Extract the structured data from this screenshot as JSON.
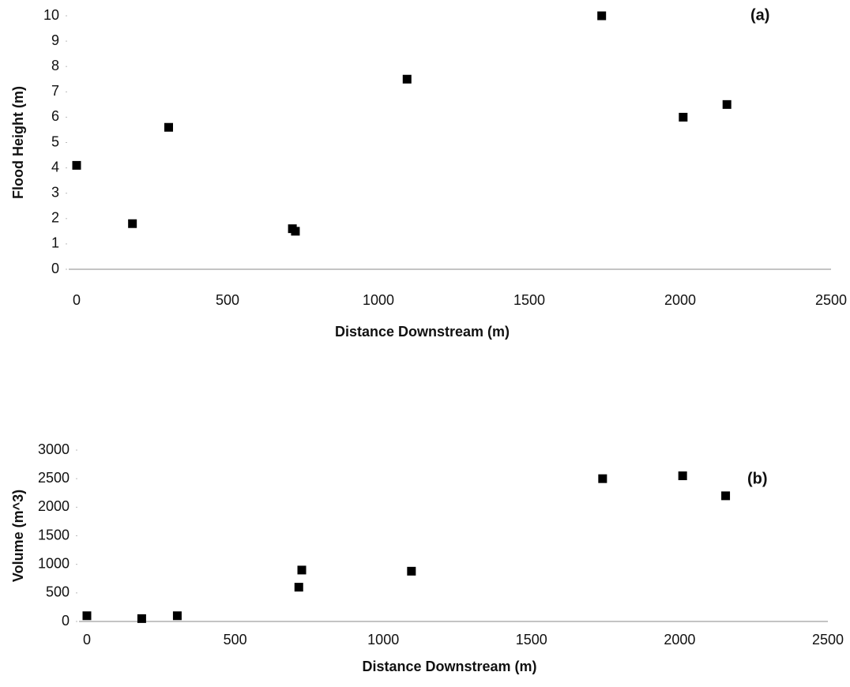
{
  "chart_data": [
    {
      "type": "scatter",
      "annotation": "(a)",
      "x_label": "Distance Downstream (m)",
      "y_label": "Flood Height (m)",
      "x": [
        0,
        185,
        305,
        715,
        725,
        1095,
        1740,
        2010,
        2155
      ],
      "y": [
        4.1,
        1.8,
        5.6,
        1.6,
        1.5,
        7.5,
        10,
        6,
        6.5
      ],
      "color": "#000000",
      "xlim": [
        0,
        2500
      ],
      "xticks": [
        0,
        500,
        1000,
        1500,
        2000,
        2500
      ],
      "ylim": [
        0,
        10
      ],
      "yticks": [
        0,
        1,
        2,
        3,
        4,
        5,
        6,
        7,
        8,
        9,
        10
      ],
      "grid": false
    },
    {
      "type": "scatter",
      "annotation": "(b)",
      "x_label": "Distance Downstream (m)",
      "y_label": "Volume (m^3)",
      "x": [
        0,
        185,
        305,
        715,
        725,
        1095,
        1740,
        2010,
        2155
      ],
      "y": [
        100,
        50,
        100,
        600,
        900,
        880,
        2500,
        2550,
        2200
      ],
      "color": "#000000",
      "xlim": [
        0,
        2500
      ],
      "xticks": [
        0,
        500,
        1000,
        1500,
        2000,
        2500
      ],
      "ylim": [
        0,
        3000
      ],
      "yticks": [
        0,
        500,
        1000,
        1500,
        2000,
        2500,
        3000
      ],
      "grid": false
    }
  ]
}
